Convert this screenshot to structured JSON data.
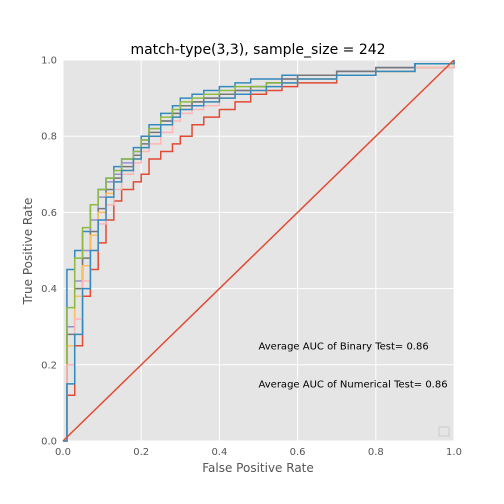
{
  "chart_data": {
    "type": "line",
    "title": "match-type(3,3), sample_size =  242",
    "xlabel": "False Positive Rate",
    "ylabel": "True Positive Rate",
    "xlim": [
      0,
      1
    ],
    "ylim": [
      0,
      1
    ],
    "xticks": [
      "0.0",
      "0.2",
      "0.4",
      "0.6",
      "0.8",
      "1.0"
    ],
    "yticks": [
      "0.0",
      "0.2",
      "0.4",
      "0.6",
      "0.8",
      "1.0"
    ],
    "grid": true,
    "background": "#e5e5e5",
    "annotations": [
      {
        "text": "Average AUC of Binary Test= 0.86",
        "x": 0.5,
        "y": 0.25
      },
      {
        "text": "Average AUC of Numerical Test= 0.86",
        "x": 0.5,
        "y": 0.15
      }
    ],
    "diagonal": {
      "x": [
        0,
        1
      ],
      "y": [
        0,
        1
      ],
      "color": "#e24a33"
    },
    "series": [
      {
        "color": "#e24a33",
        "x": [
          0,
          0.01,
          0.03,
          0.05,
          0.07,
          0.09,
          0.11,
          0.13,
          0.15,
          0.18,
          0.2,
          0.22,
          0.25,
          0.28,
          0.3,
          0.33,
          0.36,
          0.4,
          0.44,
          0.48,
          0.52,
          0.56,
          0.6,
          0.7,
          0.8,
          0.9,
          1.0
        ],
        "y": [
          0,
          0.12,
          0.25,
          0.38,
          0.45,
          0.52,
          0.58,
          0.63,
          0.66,
          0.68,
          0.7,
          0.74,
          0.76,
          0.78,
          0.8,
          0.83,
          0.85,
          0.87,
          0.89,
          0.91,
          0.92,
          0.93,
          0.94,
          0.96,
          0.97,
          0.99,
          1.0
        ]
      },
      {
        "color": "#348abd",
        "x": [
          0,
          0.01,
          0.03,
          0.05,
          0.07,
          0.09,
          0.11,
          0.13,
          0.15,
          0.18,
          0.2,
          0.22,
          0.25,
          0.28,
          0.3,
          0.33,
          0.36,
          0.4,
          0.44,
          0.48,
          0.52,
          0.56,
          0.6,
          0.7,
          0.8,
          0.9,
          1.0
        ],
        "y": [
          0,
          0.45,
          0.5,
          0.55,
          0.62,
          0.66,
          0.69,
          0.72,
          0.74,
          0.77,
          0.8,
          0.83,
          0.86,
          0.88,
          0.9,
          0.91,
          0.92,
          0.93,
          0.94,
          0.95,
          0.95,
          0.96,
          0.96,
          0.97,
          0.98,
          0.99,
          1.0
        ]
      },
      {
        "color": "#988ed5",
        "x": [
          0,
          0.01,
          0.03,
          0.05,
          0.07,
          0.09,
          0.11,
          0.13,
          0.15,
          0.18,
          0.2,
          0.22,
          0.25,
          0.28,
          0.3,
          0.33,
          0.36,
          0.4,
          0.44,
          0.48,
          0.52,
          0.56,
          0.6,
          0.7,
          0.8,
          0.9,
          1.0
        ],
        "y": [
          0,
          0.3,
          0.42,
          0.5,
          0.58,
          0.64,
          0.68,
          0.7,
          0.73,
          0.76,
          0.79,
          0.82,
          0.84,
          0.86,
          0.88,
          0.89,
          0.9,
          0.91,
          0.92,
          0.93,
          0.94,
          0.95,
          0.96,
          0.97,
          0.98,
          0.99,
          1.0
        ]
      },
      {
        "color": "#777777",
        "x": [
          0,
          0.01,
          0.03,
          0.05,
          0.07,
          0.09,
          0.11,
          0.13,
          0.15,
          0.18,
          0.2,
          0.22,
          0.25,
          0.28,
          0.3,
          0.33,
          0.36,
          0.4,
          0.44,
          0.48,
          0.52,
          0.56,
          0.6,
          0.7,
          0.8,
          0.9,
          1.0
        ],
        "y": [
          0,
          0.28,
          0.4,
          0.48,
          0.55,
          0.61,
          0.66,
          0.69,
          0.72,
          0.75,
          0.78,
          0.81,
          0.84,
          0.86,
          0.88,
          0.89,
          0.9,
          0.91,
          0.92,
          0.93,
          0.94,
          0.95,
          0.96,
          0.97,
          0.98,
          0.99,
          1.0
        ]
      },
      {
        "color": "#fbc15e",
        "x": [
          0,
          0.01,
          0.03,
          0.05,
          0.07,
          0.09,
          0.11,
          0.13,
          0.15,
          0.18,
          0.2,
          0.22,
          0.25,
          0.28,
          0.3,
          0.33,
          0.36,
          0.4,
          0.44,
          0.48,
          0.52,
          0.56,
          0.6,
          0.7,
          0.8,
          0.9,
          1.0
        ],
        "y": [
          0,
          0.25,
          0.38,
          0.46,
          0.54,
          0.6,
          0.65,
          0.68,
          0.71,
          0.74,
          0.77,
          0.8,
          0.83,
          0.85,
          0.87,
          0.88,
          0.89,
          0.9,
          0.91,
          0.92,
          0.93,
          0.94,
          0.95,
          0.96,
          0.97,
          0.98,
          1.0
        ]
      },
      {
        "color": "#8eba42",
        "x": [
          0,
          0.01,
          0.03,
          0.05,
          0.07,
          0.09,
          0.11,
          0.13,
          0.15,
          0.18,
          0.2,
          0.22,
          0.25,
          0.28,
          0.3,
          0.33,
          0.36,
          0.4,
          0.44,
          0.48,
          0.52,
          0.56,
          0.6,
          0.7,
          0.8,
          0.9,
          1.0
        ],
        "y": [
          0,
          0.35,
          0.48,
          0.56,
          0.62,
          0.66,
          0.69,
          0.71,
          0.74,
          0.76,
          0.79,
          0.82,
          0.85,
          0.87,
          0.89,
          0.9,
          0.91,
          0.92,
          0.93,
          0.93,
          0.94,
          0.94,
          0.95,
          0.96,
          0.97,
          0.98,
          1.0
        ]
      },
      {
        "color": "#ffb5b8",
        "x": [
          0,
          0.01,
          0.03,
          0.05,
          0.07,
          0.09,
          0.11,
          0.13,
          0.15,
          0.18,
          0.2,
          0.22,
          0.25,
          0.28,
          0.3,
          0.33,
          0.36,
          0.4,
          0.44,
          0.48,
          0.52,
          0.56,
          0.6,
          0.7,
          0.8,
          0.9,
          1.0
        ],
        "y": [
          0,
          0.2,
          0.32,
          0.42,
          0.5,
          0.57,
          0.62,
          0.66,
          0.7,
          0.73,
          0.76,
          0.78,
          0.81,
          0.84,
          0.86,
          0.87,
          0.88,
          0.9,
          0.91,
          0.92,
          0.93,
          0.94,
          0.95,
          0.96,
          0.97,
          0.98,
          1.0
        ]
      },
      {
        "color": "#348abd",
        "x": [
          0,
          0.01,
          0.03,
          0.05,
          0.07,
          0.09,
          0.11,
          0.13,
          0.15,
          0.18,
          0.2,
          0.22,
          0.25,
          0.28,
          0.3,
          0.33,
          0.36,
          0.4,
          0.44,
          0.48,
          0.52,
          0.56,
          0.6,
          0.7,
          0.8,
          0.9,
          1.0
        ],
        "y": [
          0,
          0.15,
          0.28,
          0.4,
          0.5,
          0.58,
          0.64,
          0.68,
          0.71,
          0.74,
          0.77,
          0.8,
          0.83,
          0.85,
          0.87,
          0.88,
          0.89,
          0.9,
          0.91,
          0.92,
          0.93,
          0.94,
          0.95,
          0.96,
          0.97,
          0.99,
          1.0
        ]
      }
    ]
  }
}
